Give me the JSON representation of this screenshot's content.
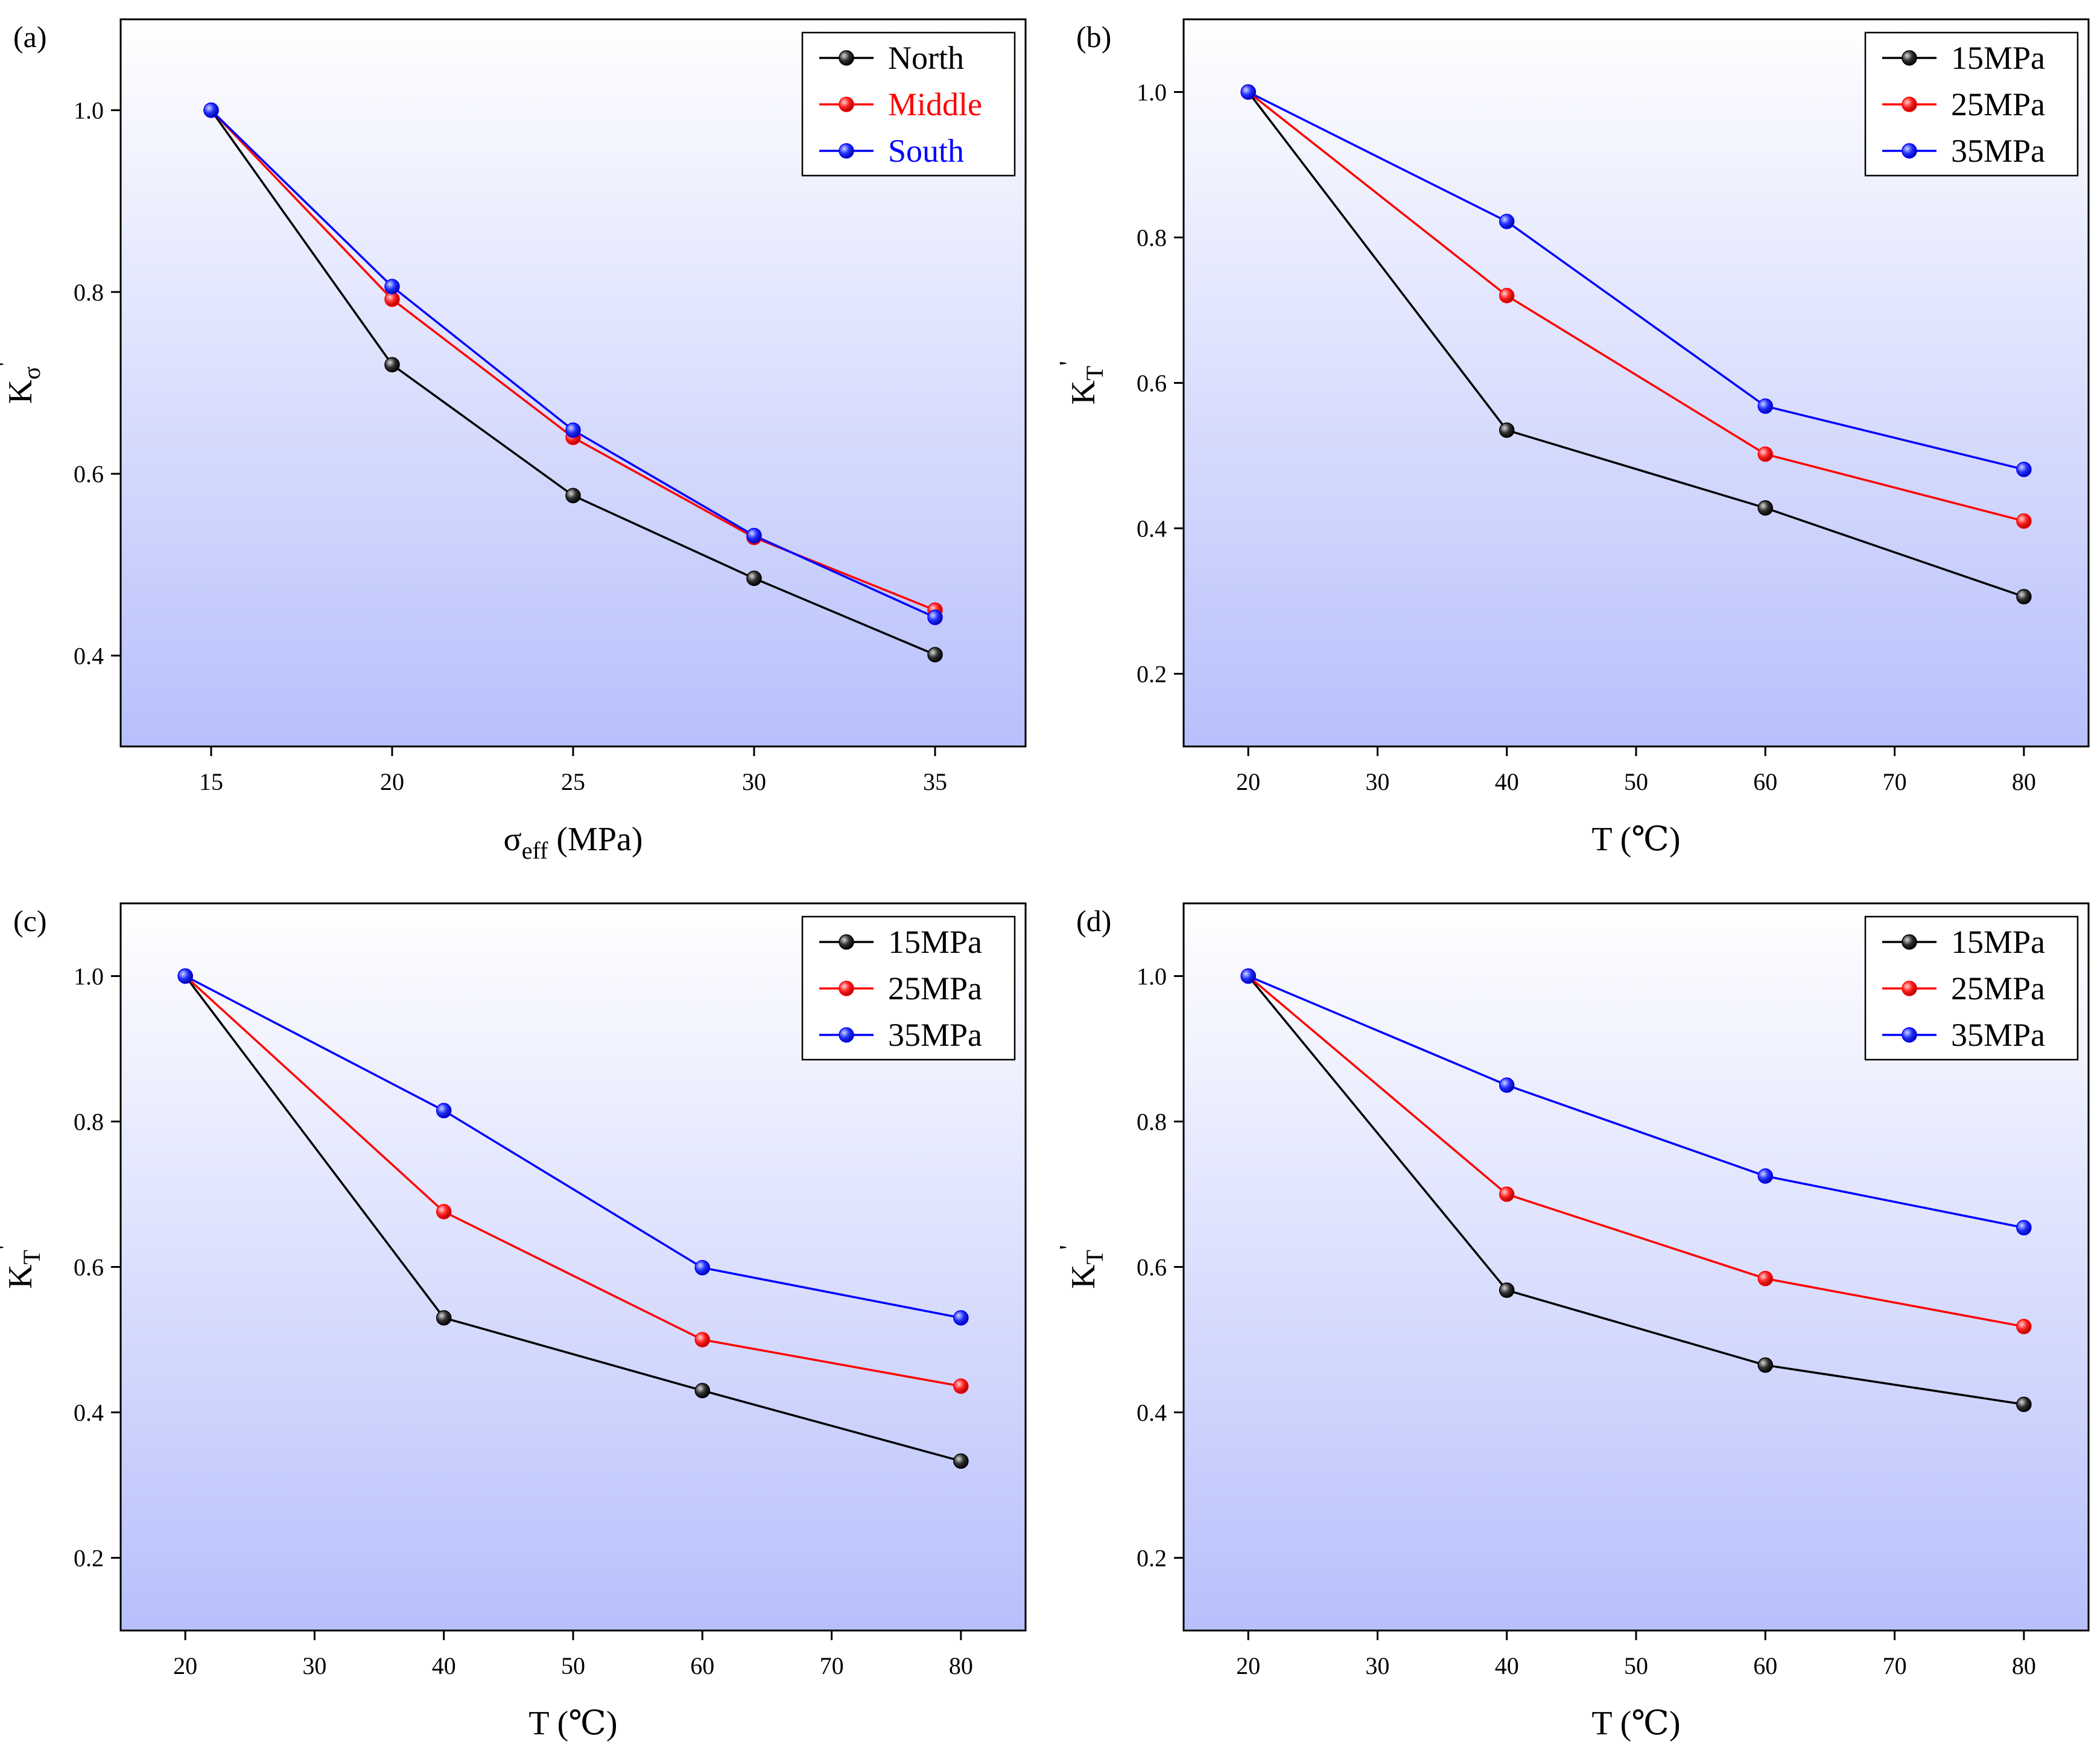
{
  "colors": {
    "black": "#000000",
    "red": "#ff0000",
    "blue": "#0000ff",
    "gradient_top": "#ffffff",
    "gradient_bottom": "#b7c0fb"
  },
  "chart_data": [
    {
      "type": "line",
      "panel_label": "(a)",
      "xlabel_main": "σ",
      "xlabel_sub": "eff",
      "xlabel_tail": " (MPa)",
      "ylabel_main": "K",
      "ylabel_sub": "σ",
      "ylabel_sup": "'",
      "xlim": [
        12.5,
        37.5
      ],
      "ylim": [
        0.3,
        1.1
      ],
      "xticks": [
        15,
        20,
        25,
        30,
        35
      ],
      "xtick_labels": [
        "15",
        "20",
        "25",
        "30",
        "35"
      ],
      "yticks": [
        0.4,
        0.6,
        0.8,
        1.0
      ],
      "ytick_labels": [
        "0.4",
        "0.6",
        "0.8",
        "1.0"
      ],
      "x": [
        15,
        20,
        25,
        30,
        35
      ],
      "legend_position": "top-right",
      "legend_colored_text": true,
      "series": [
        {
          "name": "North",
          "color": "#000000",
          "values": [
            1.0,
            0.72,
            0.576,
            0.485,
            0.401
          ]
        },
        {
          "name": "Middle",
          "color": "#ff0000",
          "values": [
            1.0,
            0.792,
            0.64,
            0.53,
            0.45
          ]
        },
        {
          "name": "South",
          "color": "#0000ff",
          "values": [
            1.0,
            0.806,
            0.648,
            0.532,
            0.442
          ]
        }
      ]
    },
    {
      "type": "line",
      "panel_label": "(b)",
      "xlabel_main": "T (℃)",
      "xlabel_sub": "",
      "xlabel_tail": "",
      "ylabel_main": "K",
      "ylabel_sub": "T",
      "ylabel_sup": "'",
      "xlim": [
        15,
        85
      ],
      "ylim": [
        0.1,
        1.1
      ],
      "xticks": [
        20,
        30,
        40,
        50,
        60,
        70,
        80
      ],
      "xtick_labels": [
        "20",
        "30",
        "40",
        "50",
        "60",
        "70",
        "80"
      ],
      "yticks": [
        0.2,
        0.4,
        0.6,
        0.8,
        1.0
      ],
      "ytick_labels": [
        "0.2",
        "0.4",
        "0.6",
        "0.8",
        "1.0"
      ],
      "x": [
        20,
        40,
        60,
        80
      ],
      "legend_position": "top-right",
      "legend_colored_text": false,
      "series": [
        {
          "name": "15MPa",
          "color": "#000000",
          "values": [
            1.0,
            0.535,
            0.428,
            0.306
          ]
        },
        {
          "name": "25MPa",
          "color": "#ff0000",
          "values": [
            1.0,
            0.72,
            0.502,
            0.41
          ]
        },
        {
          "name": "35MPa",
          "color": "#0000ff",
          "values": [
            1.0,
            0.822,
            0.568,
            0.481
          ]
        }
      ]
    },
    {
      "type": "line",
      "panel_label": "(c)",
      "xlabel_main": "T (℃)",
      "xlabel_sub": "",
      "xlabel_tail": "",
      "ylabel_main": "K",
      "ylabel_sub": "T",
      "ylabel_sup": "'",
      "xlim": [
        15,
        85
      ],
      "ylim": [
        0.1,
        1.1
      ],
      "xticks": [
        20,
        30,
        40,
        50,
        60,
        70,
        80
      ],
      "xtick_labels": [
        "20",
        "30",
        "40",
        "50",
        "60",
        "70",
        "80"
      ],
      "yticks": [
        0.2,
        0.4,
        0.6,
        0.8,
        1.0
      ],
      "ytick_labels": [
        "0.2",
        "0.4",
        "0.6",
        "0.8",
        "1.0"
      ],
      "x": [
        20,
        40,
        60,
        80
      ],
      "legend_position": "top-right",
      "legend_colored_text": false,
      "series": [
        {
          "name": "15MPa",
          "color": "#000000",
          "values": [
            1.0,
            0.53,
            0.43,
            0.333
          ]
        },
        {
          "name": "25MPa",
          "color": "#ff0000",
          "values": [
            1.0,
            0.676,
            0.5,
            0.436
          ]
        },
        {
          "name": "35MPa",
          "color": "#0000ff",
          "values": [
            1.0,
            0.815,
            0.599,
            0.53
          ]
        }
      ]
    },
    {
      "type": "line",
      "panel_label": "(d)",
      "xlabel_main": "T (℃)",
      "xlabel_sub": "",
      "xlabel_tail": "",
      "ylabel_main": "K",
      "ylabel_sub": "T",
      "ylabel_sup": "'",
      "xlim": [
        15,
        85
      ],
      "ylim": [
        0.1,
        1.1
      ],
      "xticks": [
        20,
        30,
        40,
        50,
        60,
        70,
        80
      ],
      "xtick_labels": [
        "20",
        "30",
        "40",
        "50",
        "60",
        "70",
        "80"
      ],
      "yticks": [
        0.2,
        0.4,
        0.6,
        0.8,
        1.0
      ],
      "ytick_labels": [
        "0.2",
        "0.4",
        "0.6",
        "0.8",
        "1.0"
      ],
      "x": [
        20,
        40,
        60,
        80
      ],
      "legend_position": "top-right",
      "legend_colored_text": false,
      "series": [
        {
          "name": "15MPa",
          "color": "#000000",
          "values": [
            1.0,
            0.568,
            0.465,
            0.411
          ]
        },
        {
          "name": "25MPa",
          "color": "#ff0000",
          "values": [
            1.0,
            0.7,
            0.584,
            0.518
          ]
        },
        {
          "name": "35MPa",
          "color": "#0000ff",
          "values": [
            1.0,
            0.85,
            0.725,
            0.654
          ]
        }
      ]
    }
  ]
}
